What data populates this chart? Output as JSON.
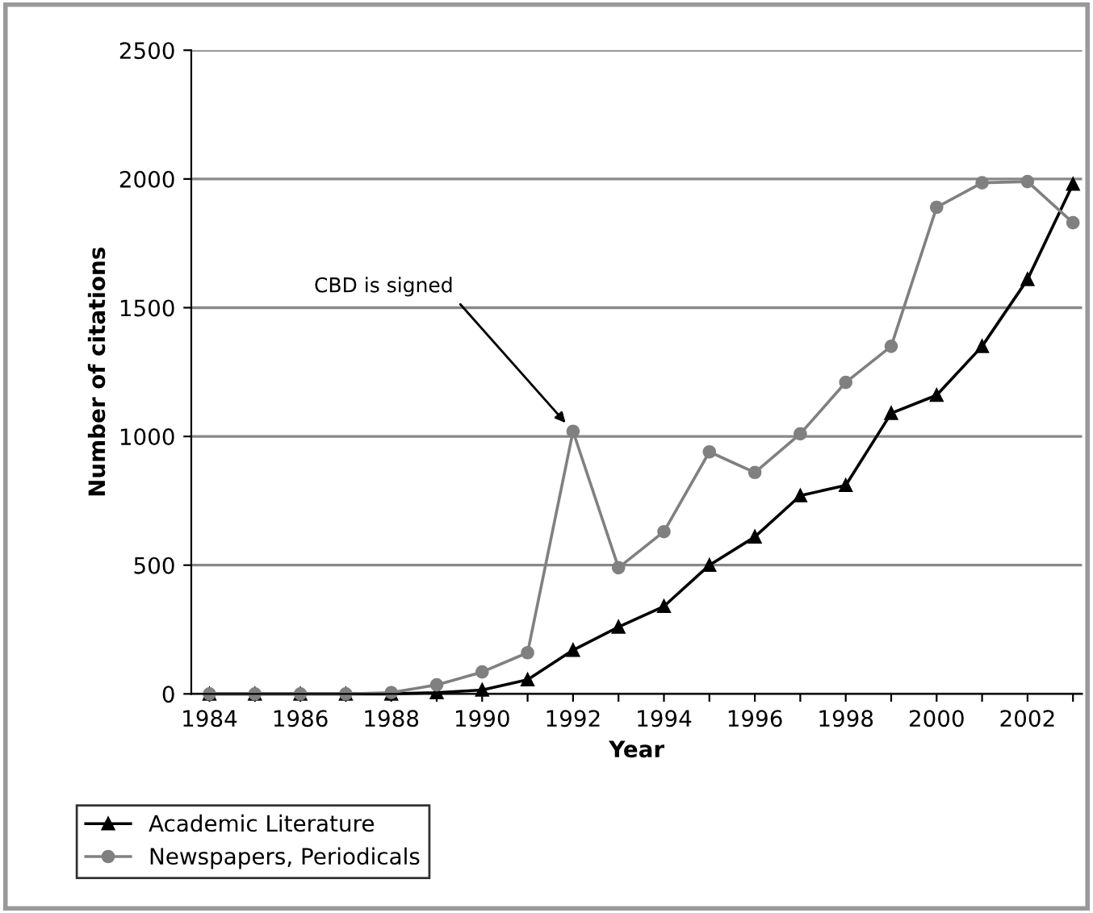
{
  "chart_data": {
    "type": "line",
    "xlabel": "Year",
    "ylabel": "Number of citations",
    "x": [
      1984,
      1985,
      1986,
      1987,
      1988,
      1989,
      1990,
      1991,
      1992,
      1993,
      1994,
      1995,
      1996,
      1997,
      1998,
      1999,
      2000,
      2001,
      2002,
      2003
    ],
    "series": [
      {
        "name": "Academic Literature",
        "color": "#000000",
        "marker": "triangle",
        "values": [
          0,
          0,
          0,
          0,
          0,
          5,
          15,
          55,
          170,
          260,
          340,
          500,
          610,
          770,
          810,
          1090,
          1160,
          1350,
          1610,
          1980
        ]
      },
      {
        "name": "Newspapers, Periodicals",
        "color": "#808080",
        "marker": "circle",
        "values": [
          0,
          0,
          0,
          0,
          5,
          35,
          85,
          160,
          1020,
          490,
          630,
          940,
          860,
          1010,
          1210,
          1350,
          1890,
          1985,
          1990,
          1830
        ]
      }
    ],
    "xlim": [
      1983.6,
      2003.2
    ],
    "xticks": [
      1984,
      {
        "value": 1985,
        "label": null
      },
      1986,
      {
        "value": 1987,
        "label": null
      },
      1988,
      {
        "value": 1989,
        "label": null
      },
      1990,
      {
        "value": 1991,
        "label": null
      },
      1992,
      {
        "value": 1993,
        "label": null
      },
      1994,
      {
        "value": 1995,
        "label": null
      },
      1996,
      {
        "value": 1997,
        "label": null
      },
      1998,
      {
        "value": 1999,
        "label": null
      },
      2000,
      {
        "value": 2001,
        "label": null
      },
      2002,
      {
        "value": 2003,
        "label": null
      }
    ],
    "ylim": [
      0,
      2500
    ],
    "yticks": [
      0,
      500,
      1000,
      1500,
      2000,
      2500
    ],
    "grid": "y",
    "legend": "bottom",
    "line_style": "solid",
    "annotations": [
      {
        "text": "CBD is signed",
        "x": 1992,
        "y": 1020
      }
    ]
  }
}
